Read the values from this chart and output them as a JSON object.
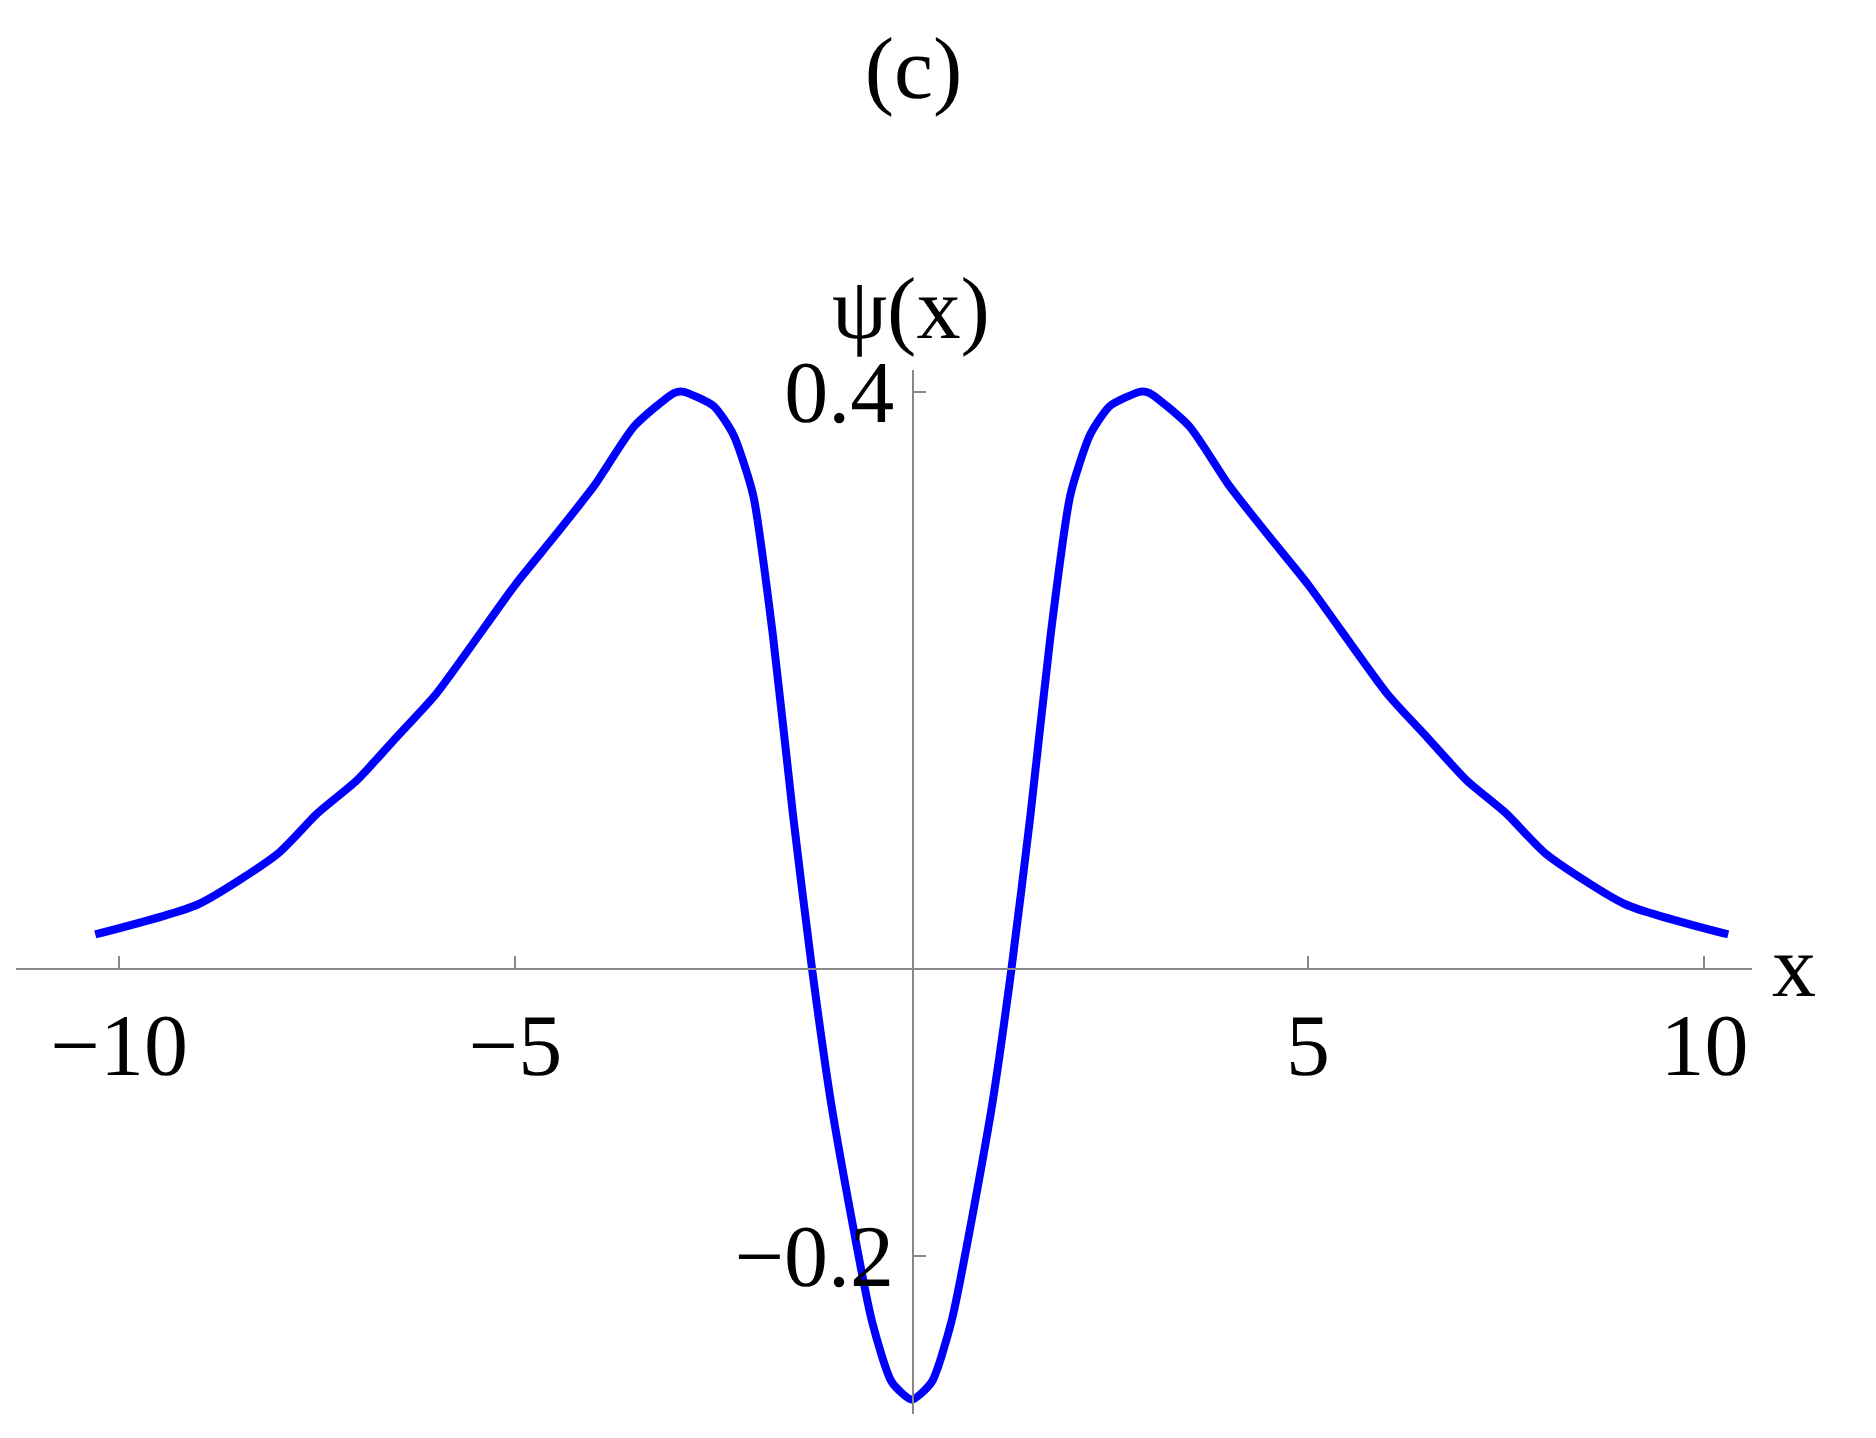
{
  "chart_data": {
    "type": "line",
    "title": "(c)",
    "xlabel": "x",
    "ylabel": "ψ(x)",
    "x": [
      -10.3,
      -9,
      -8,
      -7.5,
      -7,
      -6.5,
      -6,
      -5,
      -4.5,
      -4,
      -3.5,
      -3,
      -2.89,
      -2.5,
      -2.25,
      -2,
      -1.75,
      -1.5,
      -1.26,
      -1,
      -0.5,
      -0.25,
      0,
      0.25,
      0.5,
      1,
      1.26,
      1.5,
      1.75,
      2,
      2.25,
      2.5,
      2.89,
      3,
      3.5,
      4,
      4.5,
      5,
      6,
      6.5,
      7,
      7.5,
      8,
      9,
      10.3
    ],
    "series": [
      {
        "color": "#0000ff",
        "values": [
          0.023,
          0.044,
          0.079,
          0.107,
          0.13,
          0.16,
          0.19,
          0.266,
          0.3,
          0.335,
          0.376,
          0.399,
          0.4,
          0.39,
          0.37,
          0.328,
          0.23,
          0.107,
          0,
          -0.1,
          -0.246,
          -0.288,
          -0.3,
          -0.288,
          -0.246,
          -0.1,
          0,
          0.107,
          0.23,
          0.328,
          0.37,
          0.39,
          0.4,
          0.399,
          0.376,
          0.335,
          0.3,
          0.266,
          0.19,
          0.16,
          0.13,
          0.107,
          0.079,
          0.044,
          0.023
        ]
      }
    ],
    "xlim": [
      -11.3,
      10.6
    ],
    "ylim": [
      -0.31,
      0.415
    ],
    "xticks": [
      {
        "value": -10,
        "label": "−10"
      },
      {
        "value": -5,
        "label": "−5"
      },
      5,
      10
    ],
    "yticks": [
      {
        "value": -0.2,
        "label": "−0.2"
      },
      0.4
    ],
    "legend": false,
    "marker": "none",
    "line_style": "solid"
  }
}
